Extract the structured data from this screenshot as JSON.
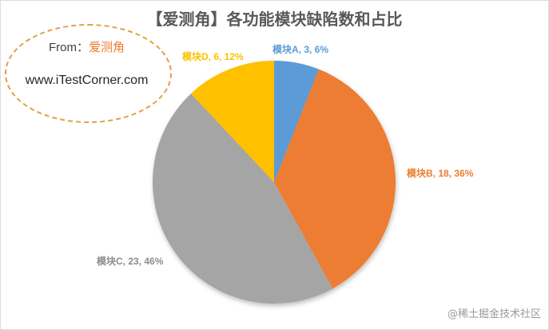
{
  "chart_data": {
    "type": "pie",
    "title": "【爱测角】各功能模块缺陷数和占比",
    "categories": [
      "模块A",
      "模块B",
      "模块C",
      "模块D"
    ],
    "values": [
      3,
      18,
      23,
      6
    ],
    "percents": [
      "6%",
      "36%",
      "46%",
      "12%"
    ],
    "labels": [
      "模块A, 3, 6%",
      "模块B, 18, 36%",
      "模块C, 23, 46%",
      "模块D, 6, 12%"
    ],
    "colors": [
      "#5B9BD5",
      "#ED7D31",
      "#A5A5A5",
      "#FFC000"
    ]
  },
  "annotation": {
    "from_label": "From：",
    "source": "爱测角",
    "site": "www.iTestCorner.com"
  },
  "watermark": "@稀土掘金技术社区"
}
